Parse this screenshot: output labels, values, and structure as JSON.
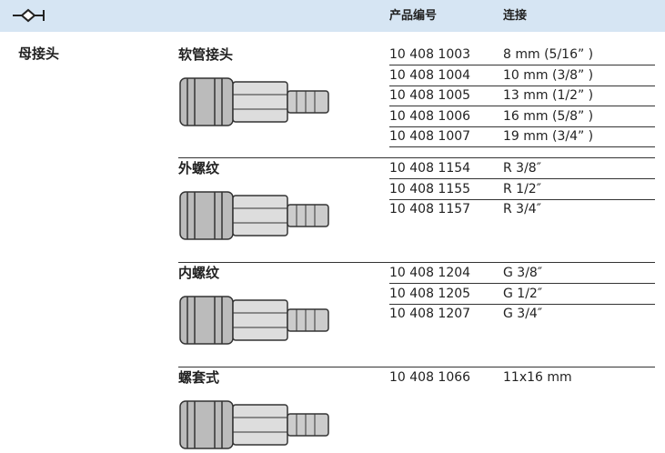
{
  "header": {
    "product_no_label": "产品编号",
    "connection_label": "连接"
  },
  "main_label": "母接头",
  "groups": [
    {
      "name": "软管接头",
      "rows": [
        [
          "10 408 1003",
          "8 mm (5/16” )"
        ],
        [
          "10 408 1004",
          "10 mm (3/8” )"
        ],
        [
          "10 408 1005",
          "13 mm (1/2” )"
        ],
        [
          "10 408 1006",
          "16 mm (5/8” )"
        ],
        [
          "10 408 1007",
          "19 mm (3/4” )"
        ]
      ]
    },
    {
      "name": "外螺纹",
      "rows": [
        [
          "10 408 1154",
          "R 3/8″"
        ],
        [
          "10 408 1155",
          "R 1/2″"
        ],
        [
          "10 408 1157",
          "R 3/4″"
        ]
      ]
    },
    {
      "name": "内螺纹",
      "rows": [
        [
          "10 408 1204",
          "G 3/8″"
        ],
        [
          "10 408 1205",
          "G 1/2″"
        ],
        [
          "10 408 1207",
          "G 3/4″"
        ]
      ]
    },
    {
      "name": "螺套式",
      "rows": [
        [
          "10 408 1066",
          "11x16 mm"
        ]
      ]
    }
  ]
}
